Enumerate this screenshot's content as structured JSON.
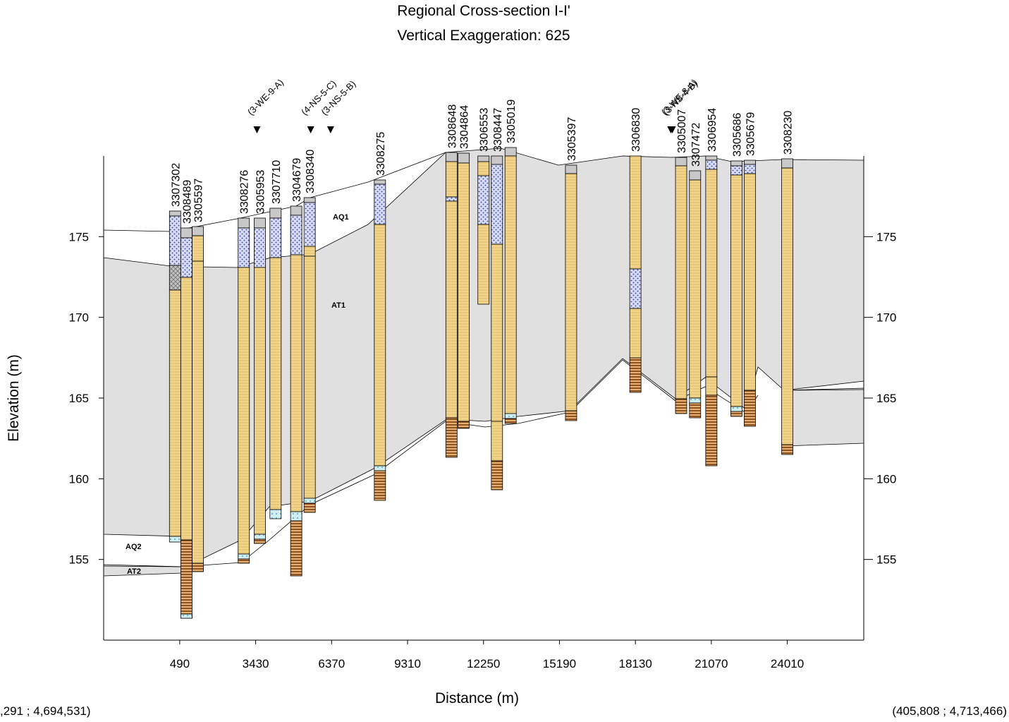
{
  "title": "Regional Cross-section I-I'",
  "subtitle": "Vertical Exaggeration: 625",
  "x_axis": {
    "label": "Distance (m)",
    "ticks": [
      490,
      3430,
      6370,
      9310,
      12250,
      15190,
      18130,
      21070,
      24010
    ],
    "range": [
      -2455,
      26970
    ]
  },
  "y_axis": {
    "label": "Elevation (m)",
    "ticks": [
      155,
      160,
      165,
      170,
      175
    ],
    "range": [
      150,
      180
    ]
  },
  "coords": {
    "left": ",291 ; 4,694,531)",
    "right": "(405,808 ; 4,713,466)"
  },
  "unit_labels": [
    "AQ1",
    "AT1",
    "AQ2",
    "AT2"
  ],
  "colors": {
    "surface_gray": "#c8c8c8",
    "unit_fill": "#e0e0e0",
    "clay_yellow": "#f2d48a",
    "sand_blue": "#c6cdf0",
    "bedrock_brown": "#8b4a1a",
    "gravel_cyan": "#bfe6ee",
    "peat_gray": "#a8a8a8"
  },
  "wells": [
    {
      "id": "3307302",
      "x": 310
    },
    {
      "id": "3308489",
      "x": 750
    },
    {
      "id": "3305597",
      "x": 1190
    },
    {
      "id": "3308276",
      "x": 2970
    },
    {
      "id": "3305953",
      "x": 3590
    },
    {
      "id": "3307710",
      "x": 4200
    },
    {
      "id": "3304679",
      "x": 5000
    },
    {
      "id": "3308340",
      "x": 5520
    },
    {
      "id": "3308275",
      "x": 8240
    },
    {
      "id": "3308648",
      "x": 11010
    },
    {
      "id": "3304864",
      "x": 11480
    },
    {
      "id": "3306553",
      "x": 12250
    },
    {
      "id": "3308447",
      "x": 12770
    },
    {
      "id": "3305019",
      "x": 13300
    },
    {
      "id": "3305397",
      "x": 15640
    },
    {
      "id": "3306830",
      "x": 18130
    },
    {
      "id": "3305007",
      "x": 19900
    },
    {
      "id": "3307472",
      "x": 20440
    },
    {
      "id": "3306954",
      "x": 21070
    },
    {
      "id": "3305686",
      "x": 22040
    },
    {
      "id": "3305679",
      "x": 22560
    },
    {
      "id": "3308230",
      "x": 24010
    }
  ],
  "markers": [
    {
      "label": "(3-WE-9-A)",
      "x": 3480
    },
    {
      "label": "(4-NS-5-C)",
      "x": 5560
    },
    {
      "label": "(3-NS-5-B)",
      "x": 6330
    },
    {
      "label": "(3-WE-8-A)",
      "x": 19500
    },
    {
      "label": "(3-NS-4-B)",
      "x": 19560
    }
  ]
}
